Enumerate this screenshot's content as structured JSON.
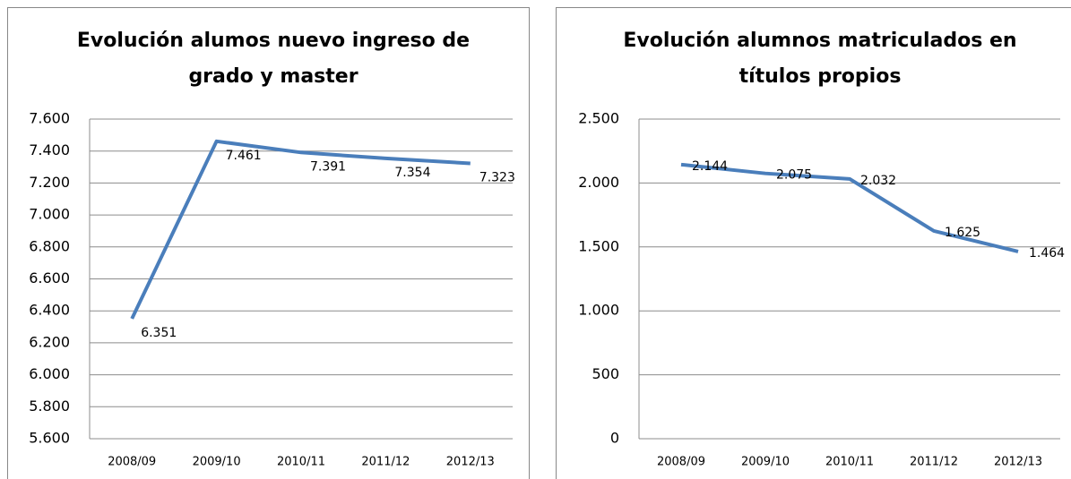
{
  "chart_data": [
    {
      "type": "line",
      "title": "Evolución alumos nuevo ingreso de grado y master",
      "categories": [
        "2008/09",
        "2009/10",
        "2010/11",
        "2011/12",
        "2012/13"
      ],
      "values": [
        6351,
        7461,
        7391,
        7354,
        7323
      ],
      "value_labels": [
        "6.351",
        "7.461",
        "7.391",
        "7.354",
        "7.323"
      ],
      "color": "#4a7ebb",
      "ylim": [
        5600,
        7600
      ],
      "yticks": [
        {
          "value": 5600,
          "label": "5.600"
        },
        {
          "value": 5800,
          "label": "5.800"
        },
        {
          "value": 6000,
          "label": "6.000"
        },
        {
          "value": 6200,
          "label": "6.200"
        },
        {
          "value": 6400,
          "label": "6.400"
        },
        {
          "value": 6600,
          "label": "6.600"
        },
        {
          "value": 6800,
          "label": "6.800"
        },
        {
          "value": 7000,
          "label": "7.000"
        },
        {
          "value": 7200,
          "label": "7.200"
        },
        {
          "value": 7400,
          "label": "7.400"
        },
        {
          "value": 7600,
          "label": "7.600"
        }
      ],
      "grid": true
    },
    {
      "type": "line",
      "title": "Evolución alumnos matriculados en títulos propios",
      "categories": [
        "2008/09",
        "2009/10",
        "2010/11",
        "2011/12",
        "2012/13"
      ],
      "values": [
        2144,
        2075,
        2032,
        1625,
        1464
      ],
      "value_labels": [
        "2.144",
        "2.075",
        "2.032",
        "1.625",
        "1.464"
      ],
      "color": "#4a7ebb",
      "ylim": [
        0,
        2500
      ],
      "yticks": [
        0,
        500,
        {
          "value": 1000,
          "label": "1.000"
        },
        {
          "value": 1500,
          "label": "1.500"
        },
        {
          "value": 2000,
          "label": "2.000"
        },
        {
          "value": 2500,
          "label": "2.500"
        }
      ],
      "grid": true
    }
  ]
}
